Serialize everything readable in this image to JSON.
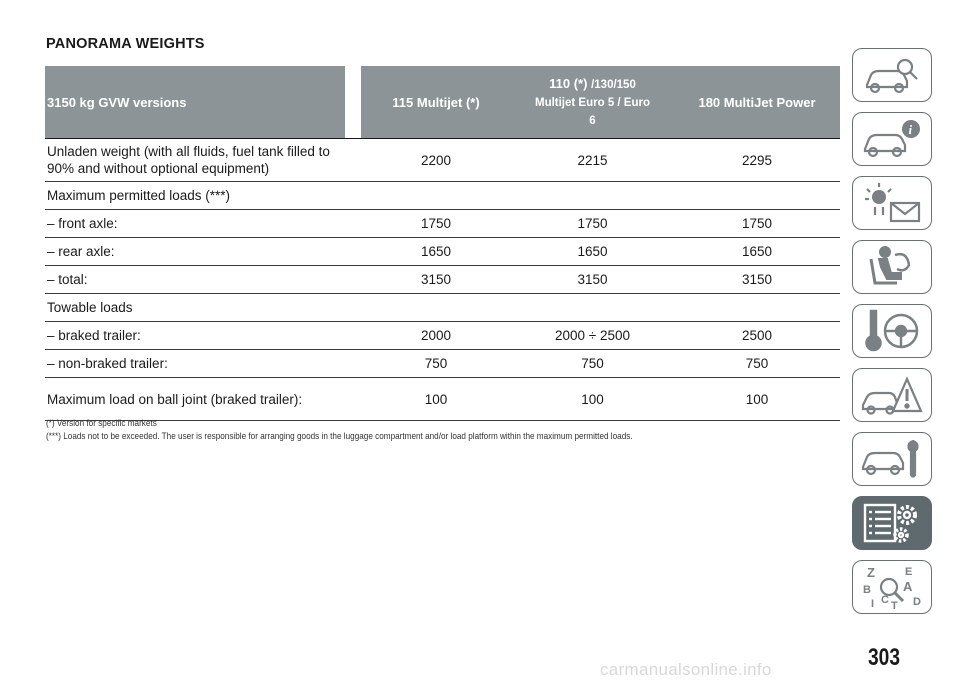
{
  "document": {
    "title": "PANORAMA WEIGHTS",
    "page_number": "303",
    "watermark": "carmanualsonline.info"
  },
  "table": {
    "headers": {
      "col0": "3150 kg GVW versions",
      "col1": "115 Multijet (*)",
      "col2_line1": "110 (*)",
      "col2_line1_sub": "/130/150",
      "col2_line2": "Multijet Euro 5 / Euro",
      "col2_line3": "6",
      "col3": "180 MultiJet Power"
    },
    "rows": [
      {
        "label": "Unladen weight (with all fluids, fuel tank filled to 90% and without optional equipment)",
        "v1": "2200",
        "v2": "2215",
        "v3": "2295"
      },
      {
        "label": "Maximum permitted loads (***)",
        "v1": "",
        "v2": "",
        "v3": ""
      },
      {
        "label": "– front axle:",
        "v1": "1750",
        "v2": "1750",
        "v3": "1750"
      },
      {
        "label": "– rear axle:",
        "v1": "1650",
        "v2": "1650",
        "v3": "1650"
      },
      {
        "label": "– total:",
        "v1": "3150",
        "v2": "3150",
        "v3": "3150"
      },
      {
        "label": "Towable loads",
        "v1": "",
        "v2": "",
        "v3": ""
      },
      {
        "label": "– braked trailer:",
        "v1": "2000",
        "v2": "2000 ÷ 2500",
        "v3": "2500"
      },
      {
        "label": "– non-braked trailer:",
        "v1": "750",
        "v2": "750",
        "v3": "750"
      },
      {
        "label": "Maximum load on ball joint (braked trailer):",
        "v1": "100",
        "v2": "100",
        "v3": "100"
      }
    ]
  },
  "footnotes": {
    "note1": "(*) Version for specific markets",
    "note2": "(***) Loads not to be exceeded. The user is responsible for arranging goods in the luggage compartment and/or load platform within the maximum permitted loads."
  },
  "sidebar": {
    "tabs": [
      {
        "icon": "car-search-icon"
      },
      {
        "icon": "car-info-icon"
      },
      {
        "icon": "warning-light-message-icon"
      },
      {
        "icon": "seat-airbag-icon"
      },
      {
        "icon": "key-steering-wheel-icon"
      },
      {
        "icon": "car-accident-warning-icon"
      },
      {
        "icon": "car-wrench-icon"
      },
      {
        "icon": "spec-list-gear-icon",
        "active": true
      },
      {
        "icon": "alphabetical-index-icon"
      }
    ],
    "colors": {
      "border": "#6a7073",
      "active_bg": "#5f6a6e",
      "header_bg": "#8c9497"
    }
  }
}
